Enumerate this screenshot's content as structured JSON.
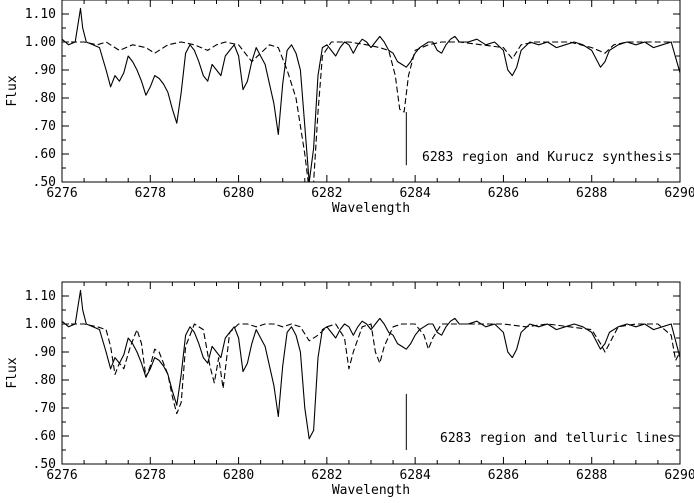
{
  "chart_data": [
    {
      "type": "line",
      "xlabel": "Wavelength",
      "ylabel": "Flux",
      "xlim": [
        6276,
        6290
      ],
      "ylim": [
        0.5,
        1.15
      ],
      "xticks": [
        6276,
        6278,
        6280,
        6282,
        6284,
        6286,
        6288,
        6290
      ],
      "yticks": [
        0.5,
        0.6,
        0.7,
        0.8,
        0.9,
        1.0,
        1.1
      ],
      "xtick_labels": [
        "6276",
        "6278",
        "6280",
        "6282",
        "6284",
        "6286",
        "6288",
        "6290"
      ],
      "ytick_labels": [
        ".50",
        ".60",
        ".70",
        ".80",
        ".90",
        "1.00",
        "1.10"
      ],
      "annotation": "6283 region and Kurucz synthesis",
      "marker_line": {
        "x": 6283.8,
        "y": [
          0.56,
          0.75
        ]
      },
      "grid": false,
      "series": [
        {
          "style": "solid",
          "x": [
            6276.0,
            6276.15,
            6276.3,
            6276.42,
            6276.47,
            6276.55,
            6276.7,
            6276.85,
            6277.0,
            6277.1,
            6277.2,
            6277.3,
            6277.4,
            6277.5,
            6277.6,
            6277.7,
            6277.8,
            6277.9,
            6278.0,
            6278.1,
            6278.2,
            6278.3,
            6278.4,
            6278.5,
            6278.6,
            6278.7,
            6278.8,
            6278.9,
            6279.0,
            6279.1,
            6279.2,
            6279.3,
            6279.4,
            6279.5,
            6279.6,
            6279.7,
            6279.8,
            6279.9,
            6280.0,
            6280.1,
            6280.2,
            6280.3,
            6280.4,
            6280.5,
            6280.6,
            6280.7,
            6280.8,
            6280.9,
            6281.0,
            6281.1,
            6281.2,
            6281.3,
            6281.4,
            6281.5,
            6281.6,
            6281.7,
            6281.8,
            6281.9,
            6282.0,
            6282.1,
            6282.2,
            6282.3,
            6282.4,
            6282.5,
            6282.6,
            6282.7,
            6282.8,
            6282.9,
            6283.0,
            6283.1,
            6283.2,
            6283.3,
            6283.4,
            6283.5,
            6283.6,
            6283.7,
            6283.8,
            6283.9,
            6284.0,
            6284.1,
            6284.2,
            6284.3,
            6284.4,
            6284.5,
            6284.6,
            6284.7,
            6284.8,
            6284.9,
            6285.0,
            6285.2,
            6285.4,
            6285.6,
            6285.8,
            6286.0,
            6286.1,
            6286.2,
            6286.3,
            6286.4,
            6286.6,
            6286.8,
            6287.0,
            6287.2,
            6287.4,
            6287.6,
            6287.8,
            6288.0,
            6288.2,
            6288.3,
            6288.4,
            6288.6,
            6288.8,
            6289.0,
            6289.2,
            6289.4,
            6289.6,
            6289.8,
            6290.0
          ],
          "y": [
            1.01,
            0.99,
            1.0,
            1.12,
            1.05,
            1.0,
            0.99,
            0.98,
            0.9,
            0.84,
            0.88,
            0.86,
            0.89,
            0.95,
            0.93,
            0.9,
            0.86,
            0.81,
            0.84,
            0.88,
            0.87,
            0.85,
            0.82,
            0.76,
            0.71,
            0.82,
            0.96,
            0.99,
            0.97,
            0.93,
            0.88,
            0.86,
            0.92,
            0.9,
            0.88,
            0.95,
            0.97,
            0.99,
            0.95,
            0.83,
            0.86,
            0.93,
            0.98,
            0.95,
            0.92,
            0.85,
            0.78,
            0.67,
            0.85,
            0.97,
            0.99,
            0.96,
            0.9,
            0.7,
            0.5,
            0.62,
            0.88,
            0.98,
            0.99,
            0.97,
            0.95,
            0.98,
            1.0,
            0.99,
            0.96,
            0.99,
            1.01,
            1.0,
            0.98,
            1.0,
            1.02,
            1.0,
            0.97,
            0.96,
            0.93,
            0.92,
            0.91,
            0.93,
            0.96,
            0.98,
            0.99,
            1.0,
            1.0,
            0.97,
            0.96,
            0.99,
            1.01,
            1.02,
            1.0,
            1.0,
            1.01,
            0.99,
            1.0,
            0.97,
            0.9,
            0.88,
            0.91,
            0.97,
            1.0,
            0.99,
            1.0,
            0.98,
            0.99,
            1.0,
            0.99,
            0.97,
            0.91,
            0.93,
            0.97,
            0.99,
            1.0,
            0.99,
            1.0,
            0.98,
            0.99,
            1.0,
            0.89
          ]
        },
        {
          "style": "dashed",
          "x": [
            6276.0,
            6276.5,
            6276.8,
            6277.0,
            6277.3,
            6277.6,
            6277.9,
            6278.1,
            6278.4,
            6278.7,
            6279.0,
            6279.3,
            6279.5,
            6279.7,
            6280.0,
            6280.3,
            6280.5,
            6280.7,
            6280.9,
            6281.1,
            6281.3,
            6281.5,
            6281.6,
            6281.7,
            6281.8,
            6281.9,
            6282.1,
            6282.5,
            6282.9,
            6283.2,
            6283.4,
            6283.55,
            6283.65,
            6283.75,
            6283.85,
            6284.0,
            6284.3,
            6284.6,
            6285.0,
            6285.5,
            6286.0,
            6286.2,
            6286.4,
            6286.7,
            6287.0,
            6287.5,
            6288.0,
            6288.3,
            6288.5,
            6288.8,
            6289.2,
            6289.6,
            6290.0
          ],
          "y": [
            1.0,
            1.0,
            0.99,
            1.0,
            0.97,
            0.99,
            0.98,
            0.96,
            0.99,
            1.0,
            0.99,
            0.97,
            0.99,
            1.0,
            0.99,
            0.93,
            0.96,
            0.99,
            0.98,
            0.9,
            0.8,
            0.6,
            0.47,
            0.5,
            0.75,
            0.95,
            1.0,
            1.0,
            0.99,
            0.98,
            0.97,
            0.88,
            0.76,
            0.75,
            0.88,
            0.97,
            0.99,
            1.0,
            1.0,
            0.99,
            0.98,
            0.94,
            0.99,
            1.0,
            1.0,
            1.0,
            0.98,
            0.96,
            0.99,
            1.0,
            1.0,
            1.0,
            1.0
          ]
        }
      ]
    },
    {
      "type": "line",
      "xlabel": "Wavelength",
      "ylabel": "Flux",
      "xlim": [
        6276,
        6290
      ],
      "ylim": [
        0.5,
        1.15
      ],
      "xticks": [
        6276,
        6278,
        6280,
        6282,
        6284,
        6286,
        6288,
        6290
      ],
      "yticks": [
        0.5,
        0.6,
        0.7,
        0.8,
        0.9,
        1.0,
        1.1
      ],
      "xtick_labels": [
        "6276",
        "6278",
        "6280",
        "6282",
        "6284",
        "6286",
        "6288",
        "6290"
      ],
      "ytick_labels": [
        ".50",
        ".60",
        ".70",
        ".80",
        ".90",
        "1.00",
        "1.10"
      ],
      "annotation": "6283 region and telluric lines",
      "marker_line": {
        "x": 6283.8,
        "y": [
          0.55,
          0.75
        ]
      },
      "grid": false,
      "series": [
        {
          "style": "solid",
          "x": [
            6276.0,
            6276.15,
            6276.3,
            6276.42,
            6276.47,
            6276.55,
            6276.7,
            6276.85,
            6277.0,
            6277.1,
            6277.2,
            6277.3,
            6277.4,
            6277.5,
            6277.6,
            6277.7,
            6277.8,
            6277.9,
            6278.0,
            6278.1,
            6278.2,
            6278.3,
            6278.4,
            6278.5,
            6278.6,
            6278.7,
            6278.8,
            6278.9,
            6279.0,
            6279.1,
            6279.2,
            6279.3,
            6279.4,
            6279.5,
            6279.6,
            6279.7,
            6279.8,
            6279.9,
            6280.0,
            6280.1,
            6280.2,
            6280.3,
            6280.4,
            6280.5,
            6280.6,
            6280.7,
            6280.8,
            6280.9,
            6281.0,
            6281.1,
            6281.2,
            6281.3,
            6281.4,
            6281.5,
            6281.6,
            6281.7,
            6281.8,
            6281.9,
            6282.0,
            6282.1,
            6282.2,
            6282.3,
            6282.4,
            6282.5,
            6282.6,
            6282.7,
            6282.8,
            6282.9,
            6283.0,
            6283.1,
            6283.2,
            6283.3,
            6283.4,
            6283.5,
            6283.6,
            6283.7,
            6283.8,
            6283.9,
            6284.0,
            6284.1,
            6284.2,
            6284.3,
            6284.4,
            6284.5,
            6284.6,
            6284.7,
            6284.8,
            6284.9,
            6285.0,
            6285.2,
            6285.4,
            6285.6,
            6285.8,
            6286.0,
            6286.1,
            6286.2,
            6286.3,
            6286.4,
            6286.6,
            6286.8,
            6287.0,
            6287.2,
            6287.4,
            6287.6,
            6287.8,
            6288.0,
            6288.2,
            6288.3,
            6288.4,
            6288.6,
            6288.8,
            6289.0,
            6289.2,
            6289.4,
            6289.6,
            6289.8,
            6290.0
          ],
          "y": [
            1.01,
            0.99,
            1.0,
            1.12,
            1.05,
            1.0,
            0.99,
            0.98,
            0.9,
            0.84,
            0.88,
            0.86,
            0.89,
            0.95,
            0.93,
            0.9,
            0.86,
            0.81,
            0.84,
            0.88,
            0.87,
            0.85,
            0.82,
            0.76,
            0.71,
            0.82,
            0.96,
            0.99,
            0.97,
            0.93,
            0.88,
            0.86,
            0.92,
            0.9,
            0.88,
            0.95,
            0.97,
            0.99,
            0.95,
            0.83,
            0.86,
            0.93,
            0.98,
            0.95,
            0.92,
            0.85,
            0.78,
            0.67,
            0.85,
            0.97,
            0.99,
            0.96,
            0.9,
            0.7,
            0.59,
            0.62,
            0.88,
            0.98,
            0.99,
            0.97,
            0.95,
            0.98,
            1.0,
            0.99,
            0.96,
            0.99,
            1.01,
            1.0,
            0.98,
            1.0,
            1.02,
            1.0,
            0.97,
            0.96,
            0.93,
            0.92,
            0.91,
            0.93,
            0.96,
            0.98,
            0.99,
            1.0,
            1.0,
            0.97,
            0.96,
            0.99,
            1.01,
            1.02,
            1.0,
            1.0,
            1.01,
            0.99,
            1.0,
            0.97,
            0.9,
            0.88,
            0.91,
            0.97,
            1.0,
            0.99,
            1.0,
            0.98,
            0.99,
            1.0,
            0.99,
            0.97,
            0.91,
            0.93,
            0.97,
            0.99,
            1.0,
            0.99,
            1.0,
            0.98,
            0.99,
            1.0,
            0.88
          ]
        },
        {
          "style": "dashed",
          "x": [
            6276.0,
            6276.5,
            6276.8,
            6277.0,
            6277.1,
            6277.2,
            6277.3,
            6277.4,
            6277.55,
            6277.7,
            6277.8,
            6277.9,
            6278.0,
            6278.1,
            6278.2,
            6278.4,
            6278.5,
            6278.6,
            6278.7,
            6278.8,
            6279.0,
            6279.2,
            6279.35,
            6279.45,
            6279.55,
            6279.65,
            6279.8,
            6280.0,
            6280.2,
            6280.4,
            6280.6,
            6280.8,
            6281.0,
            6281.2,
            6281.4,
            6281.6,
            6281.8,
            6282.0,
            6282.2,
            6282.4,
            6282.5,
            6282.6,
            6282.8,
            6283.0,
            6283.1,
            6283.2,
            6283.3,
            6283.5,
            6283.7,
            6284.0,
            6284.2,
            6284.3,
            6284.4,
            6284.6,
            6285.0,
            6285.5,
            6286.0,
            6286.5,
            6287.0,
            6287.5,
            6288.0,
            6288.2,
            6288.3,
            6288.4,
            6288.6,
            6289.0,
            6289.5,
            6289.8,
            6289.9,
            6290.0
          ],
          "y": [
            1.0,
            1.0,
            0.99,
            0.98,
            0.92,
            0.82,
            0.86,
            0.84,
            0.92,
            0.98,
            0.93,
            0.81,
            0.85,
            0.91,
            0.9,
            0.82,
            0.74,
            0.68,
            0.72,
            0.92,
            1.0,
            0.98,
            0.85,
            0.79,
            0.88,
            0.77,
            0.97,
            1.0,
            1.0,
            0.99,
            1.0,
            1.0,
            0.99,
            1.0,
            0.99,
            0.94,
            0.96,
            0.99,
            1.0,
            0.95,
            0.84,
            0.9,
            0.99,
            1.0,
            0.9,
            0.86,
            0.92,
            0.99,
            1.0,
            1.0,
            0.96,
            0.91,
            0.95,
            1.0,
            1.0,
            1.0,
            1.0,
            0.99,
            1.0,
            0.99,
            0.98,
            0.93,
            0.9,
            0.93,
            0.99,
            1.0,
            1.0,
            0.96,
            0.87,
            0.9
          ]
        }
      ]
    }
  ]
}
